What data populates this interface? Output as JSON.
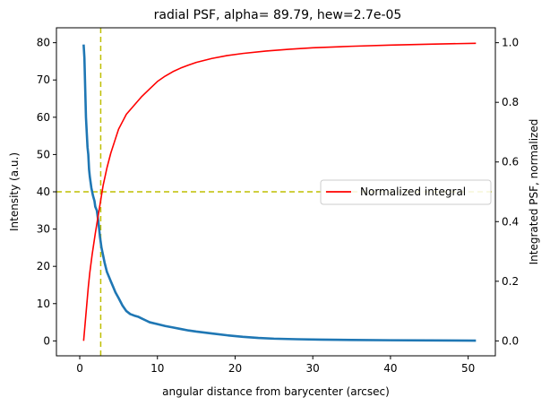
{
  "chart_data": {
    "type": "line",
    "title": "radial PSF, alpha= 89.79, hew=2.7e-05",
    "xlabel": "angular distance from barycenter (arcsec)",
    "ylabel_left": "Intensity (a.u.)",
    "ylabel_left_color": "#0000ff",
    "ylabel_right": "Integrated PSF, normalized",
    "xlim": [
      -3.0,
      53.5
    ],
    "ylim_left": [
      -4.0,
      84.0
    ],
    "ylim_right": [
      -0.05,
      1.05
    ],
    "x_ticks": [
      0,
      10,
      20,
      30,
      40,
      50
    ],
    "y_ticks_left": [
      0,
      10,
      20,
      30,
      40,
      50,
      60,
      70,
      80
    ],
    "y_ticks_right": [
      0.0,
      0.2,
      0.4,
      0.6,
      0.8,
      1.0
    ],
    "y_ticks_right_labels": [
      "0.0",
      "0.2",
      "0.4",
      "0.6",
      "0.8",
      "1.0"
    ],
    "grid": false,
    "legend_position": "center-right",
    "hline_left_y": 40,
    "vline_x": 2.7,
    "ref_line_color": "#bfbf00",
    "series": [
      {
        "axis": "left",
        "color": "#1f77b4",
        "x": [
          0.5,
          0.6,
          0.7,
          0.8,
          0.9,
          1.0,
          1.1,
          1.2,
          1.3,
          1.5,
          1.7,
          1.9,
          2.0,
          2.2,
          2.4,
          2.6,
          2.8,
          3.0,
          3.2,
          3.5,
          3.8,
          4.0,
          4.3,
          4.6,
          5.0,
          5.5,
          6.0,
          6.5,
          7.0,
          7.5,
          8.0,
          8.5,
          9.0,
          10.0,
          11.0,
          12.0,
          13.0,
          14.0,
          15.0,
          17.0,
          19.0,
          21.0,
          23.0,
          25.0,
          28.0,
          31.0,
          35.0,
          40.0,
          45.0,
          51.0
        ],
        "y": [
          79.5,
          76.0,
          68.0,
          60.0,
          56.0,
          52.0,
          50.0,
          46.0,
          44.0,
          41.0,
          39.0,
          37.5,
          36.0,
          35.0,
          32.0,
          28.0,
          25.0,
          23.0,
          21.0,
          18.5,
          17.0,
          16.0,
          14.5,
          13.0,
          11.5,
          9.5,
          8.0,
          7.2,
          6.8,
          6.5,
          6.0,
          5.5,
          5.0,
          4.5,
          4.0,
          3.6,
          3.2,
          2.8,
          2.5,
          2.0,
          1.5,
          1.1,
          0.8,
          0.6,
          0.45,
          0.35,
          0.25,
          0.18,
          0.12,
          0.08
        ]
      },
      {
        "name": "Normalized integral",
        "axis": "right",
        "color": "#ff0000",
        "x": [
          0.5,
          0.7,
          0.9,
          1.1,
          1.3,
          1.6,
          2.0,
          2.5,
          3.0,
          3.5,
          4.0,
          4.5,
          5.0,
          5.5,
          6.0,
          7.0,
          8.0,
          9.0,
          10.0,
          11.0,
          12.0,
          13.0,
          14.0,
          15.0,
          17.0,
          19.0,
          21.0,
          24.0,
          27.0,
          30.0,
          35.0,
          40.0,
          45.0,
          51.0
        ],
        "y": [
          0.0,
          0.06,
          0.12,
          0.18,
          0.23,
          0.29,
          0.36,
          0.44,
          0.52,
          0.58,
          0.63,
          0.67,
          0.71,
          0.735,
          0.76,
          0.79,
          0.82,
          0.845,
          0.87,
          0.888,
          0.903,
          0.915,
          0.925,
          0.934,
          0.947,
          0.957,
          0.964,
          0.972,
          0.978,
          0.983,
          0.988,
          0.992,
          0.995,
          0.998
        ]
      }
    ]
  }
}
